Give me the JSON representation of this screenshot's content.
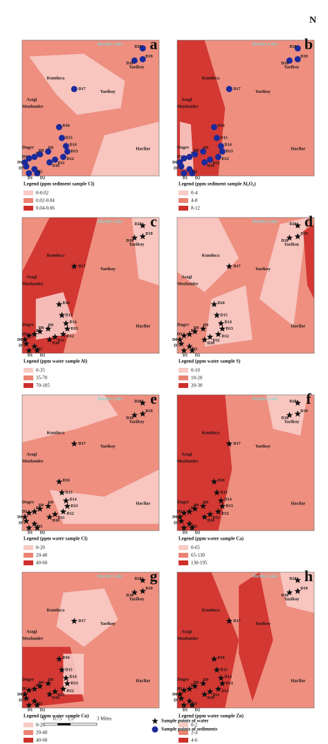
{
  "north_label": "N",
  "places": [
    "Burdur Lake",
    "Kumluca",
    "Asagi",
    "Muslumler",
    "Yarikoy",
    "Yazikoy",
    "Hacilar",
    "Duger"
  ],
  "sample_points": [
    "D1",
    "D2",
    "D3",
    "D4",
    "D5",
    "D6",
    "D7",
    "D8",
    "D9",
    "D10",
    "D11",
    "D12",
    "D13",
    "D14",
    "D15",
    "D16",
    "D17",
    "D18",
    "D19",
    "D20"
  ],
  "panels": [
    {
      "letter": "a",
      "marker": "circle",
      "legend_title": "Legend (ppm sediment sample Cl)",
      "legend": [
        "0-0.02",
        "0.02-0.04",
        "0.04-0.06"
      ]
    },
    {
      "letter": "b",
      "marker": "circle",
      "legend_title": "Legend (ppm sediment  sample Al₂O₃)",
      "legend": [
        "0-4",
        "4-8",
        "8-12"
      ]
    },
    {
      "letter": "c",
      "marker": "star",
      "legend_title": "Legend (ppm water sample Al)",
      "legend": [
        "0-35",
        "35-70",
        "70-105"
      ]
    },
    {
      "letter": "d",
      "marker": "star",
      "legend_title": "Legend (ppm water sample S)",
      "legend": [
        "0-10",
        "10-20",
        "20-30"
      ]
    },
    {
      "letter": "e",
      "marker": "star",
      "legend_title": "Legend (ppm water sample Cl)",
      "legend": [
        "0-20",
        "20-40",
        "40-60"
      ]
    },
    {
      "letter": "f",
      "marker": "star",
      "legend_title": "Legend (ppm water sample Ca)",
      "legend": [
        "0-65",
        "65-130",
        "130-195"
      ]
    },
    {
      "letter": "g",
      "marker": "star",
      "legend_title": "Legend (ppm water sample Cu)",
      "legend": [
        "0-20",
        "20-40",
        "40-60"
      ]
    },
    {
      "letter": "h",
      "marker": "star",
      "legend_title": "Legend (ppm water sample Zn)",
      "legend": [
        "0-2",
        "2-4",
        "4-6"
      ]
    }
  ],
  "legend_colors": [
    "#f8cbc5",
    "#ec8372",
    "#cf2f2a"
  ],
  "scale_bar": [
    "0",
    "0.75",
    "1.5",
    "3 Miles"
  ],
  "key": {
    "water": "Sample points of water",
    "sediments": "Sample points of sediments"
  }
}
